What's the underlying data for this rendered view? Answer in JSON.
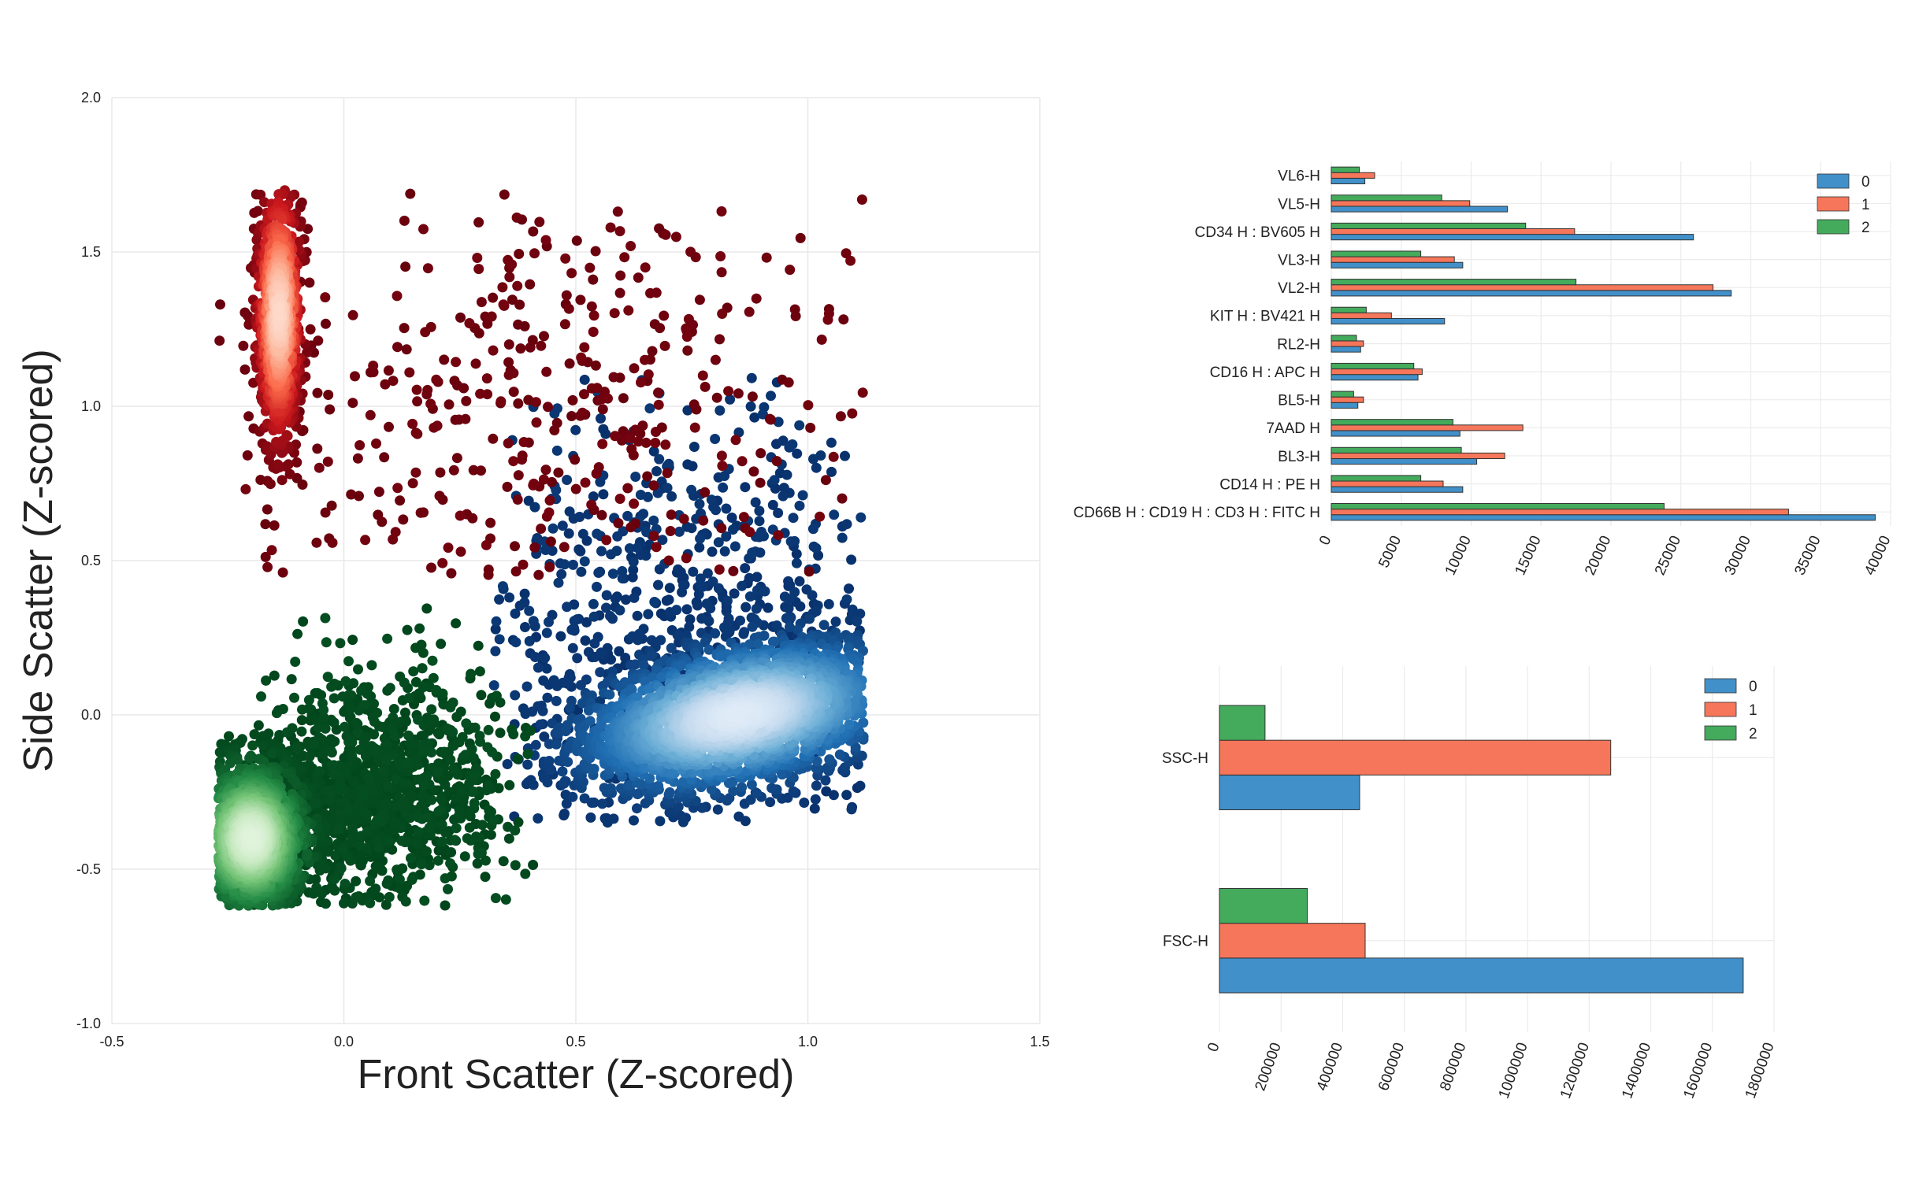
{
  "chart_data": [
    {
      "type": "scatter",
      "xlabel": "Front Scatter (Z-scored)",
      "ylabel": "Side Scatter (Z-scored)",
      "xlim": [
        -0.5,
        1.5
      ],
      "ylim": [
        -1.0,
        2.0
      ],
      "xticks": [
        -0.5,
        0.0,
        0.5,
        1.0,
        1.5
      ],
      "yticks": [
        -1.0,
        -0.5,
        0.0,
        0.5,
        1.0,
        1.5,
        2.0
      ],
      "grid": true,
      "colors": {
        "cluster_0": "#08306b",
        "cluster_1": "#67000d",
        "cluster_2": "#00441b"
      },
      "series": [
        {
          "colormap": "Blues",
          "clusters": [
            {
              "cx": 0.85,
              "cy": 0.0,
              "sx": 0.18,
              "sy": 0.12,
              "n": 2600,
              "tilt": 0.25
            },
            {
              "cx": 0.7,
              "cy": 0.35,
              "sx": 0.25,
              "sy": 0.3,
              "n": 700,
              "tilt": 0.0
            }
          ],
          "x_range": [
            0.32,
            1.12
          ],
          "y_range": [
            -0.35,
            1.1
          ]
        },
        {
          "colormap": "Reds",
          "clusters": [
            {
              "cx": -0.14,
              "cy": 1.3,
              "sx": 0.025,
              "sy": 0.22,
              "n": 900,
              "tilt": 0.0
            },
            {
              "cx": 0.45,
              "cy": 1.0,
              "sx": 0.33,
              "sy": 0.4,
              "n": 450,
              "tilt": 0.0
            }
          ],
          "x_range": [
            -0.27,
            1.12
          ],
          "y_range": [
            0.45,
            1.7
          ]
        },
        {
          "colormap": "Greens",
          "clusters": [
            {
              "cx": -0.2,
              "cy": -0.4,
              "sx": 0.06,
              "sy": 0.12,
              "n": 1800,
              "tilt": 0.0
            },
            {
              "cx": 0.05,
              "cy": -0.25,
              "sx": 0.14,
              "sy": 0.18,
              "n": 1300,
              "tilt": 0.2
            }
          ],
          "x_range": [
            -0.27,
            0.42
          ],
          "y_range": [
            -0.62,
            0.48
          ]
        }
      ]
    },
    {
      "type": "bar",
      "orientation": "horizontal",
      "categories": [
        "VL6-H",
        "VL5-H",
        "CD34 H : BV605 H",
        "VL3-H",
        "VL2-H",
        "KIT H : BV421 H",
        "RL2-H",
        "CD16 H : APC H",
        "BL5-H",
        "7AAD H",
        "BL3-H",
        "CD14 H : PE H",
        "CD66B H : CD19 H : CD3 H : FITC H"
      ],
      "series": [
        {
          "name": "0",
          "color": "#4190c9",
          "values": [
            2400,
            12600,
            25900,
            9400,
            28600,
            8100,
            2100,
            6200,
            1900,
            9200,
            10400,
            9400,
            38900
          ]
        },
        {
          "name": "1",
          "color": "#f5765a",
          "values": [
            3100,
            9900,
            17400,
            8800,
            27300,
            4300,
            2300,
            6500,
            2300,
            13700,
            12400,
            8000,
            32700
          ]
        },
        {
          "name": "2",
          "color": "#44aa5c",
          "values": [
            2000,
            7900,
            13900,
            6400,
            17500,
            2500,
            1800,
            5900,
            1600,
            8700,
            9300,
            6400,
            23800
          ]
        }
      ],
      "xlim": [
        0,
        40000
      ],
      "xticks": [
        0,
        5000,
        10000,
        15000,
        20000,
        25000,
        30000,
        35000,
        40000
      ],
      "legend": "top-right",
      "grid": true
    },
    {
      "type": "bar",
      "orientation": "horizontal",
      "categories": [
        "SSC-H",
        "FSC-H"
      ],
      "series": [
        {
          "name": "0",
          "color": "#4190c9",
          "values": [
            455000,
            1700000
          ]
        },
        {
          "name": "1",
          "color": "#f5765a",
          "values": [
            1270000,
            473000
          ]
        },
        {
          "name": "2",
          "color": "#44aa5c",
          "values": [
            148000,
            285000
          ]
        }
      ],
      "xlim": [
        0,
        1800000
      ],
      "xticks": [
        0,
        200000,
        400000,
        600000,
        800000,
        1000000,
        1200000,
        1400000,
        1600000,
        1800000
      ],
      "legend": "top-right",
      "grid": true
    }
  ]
}
